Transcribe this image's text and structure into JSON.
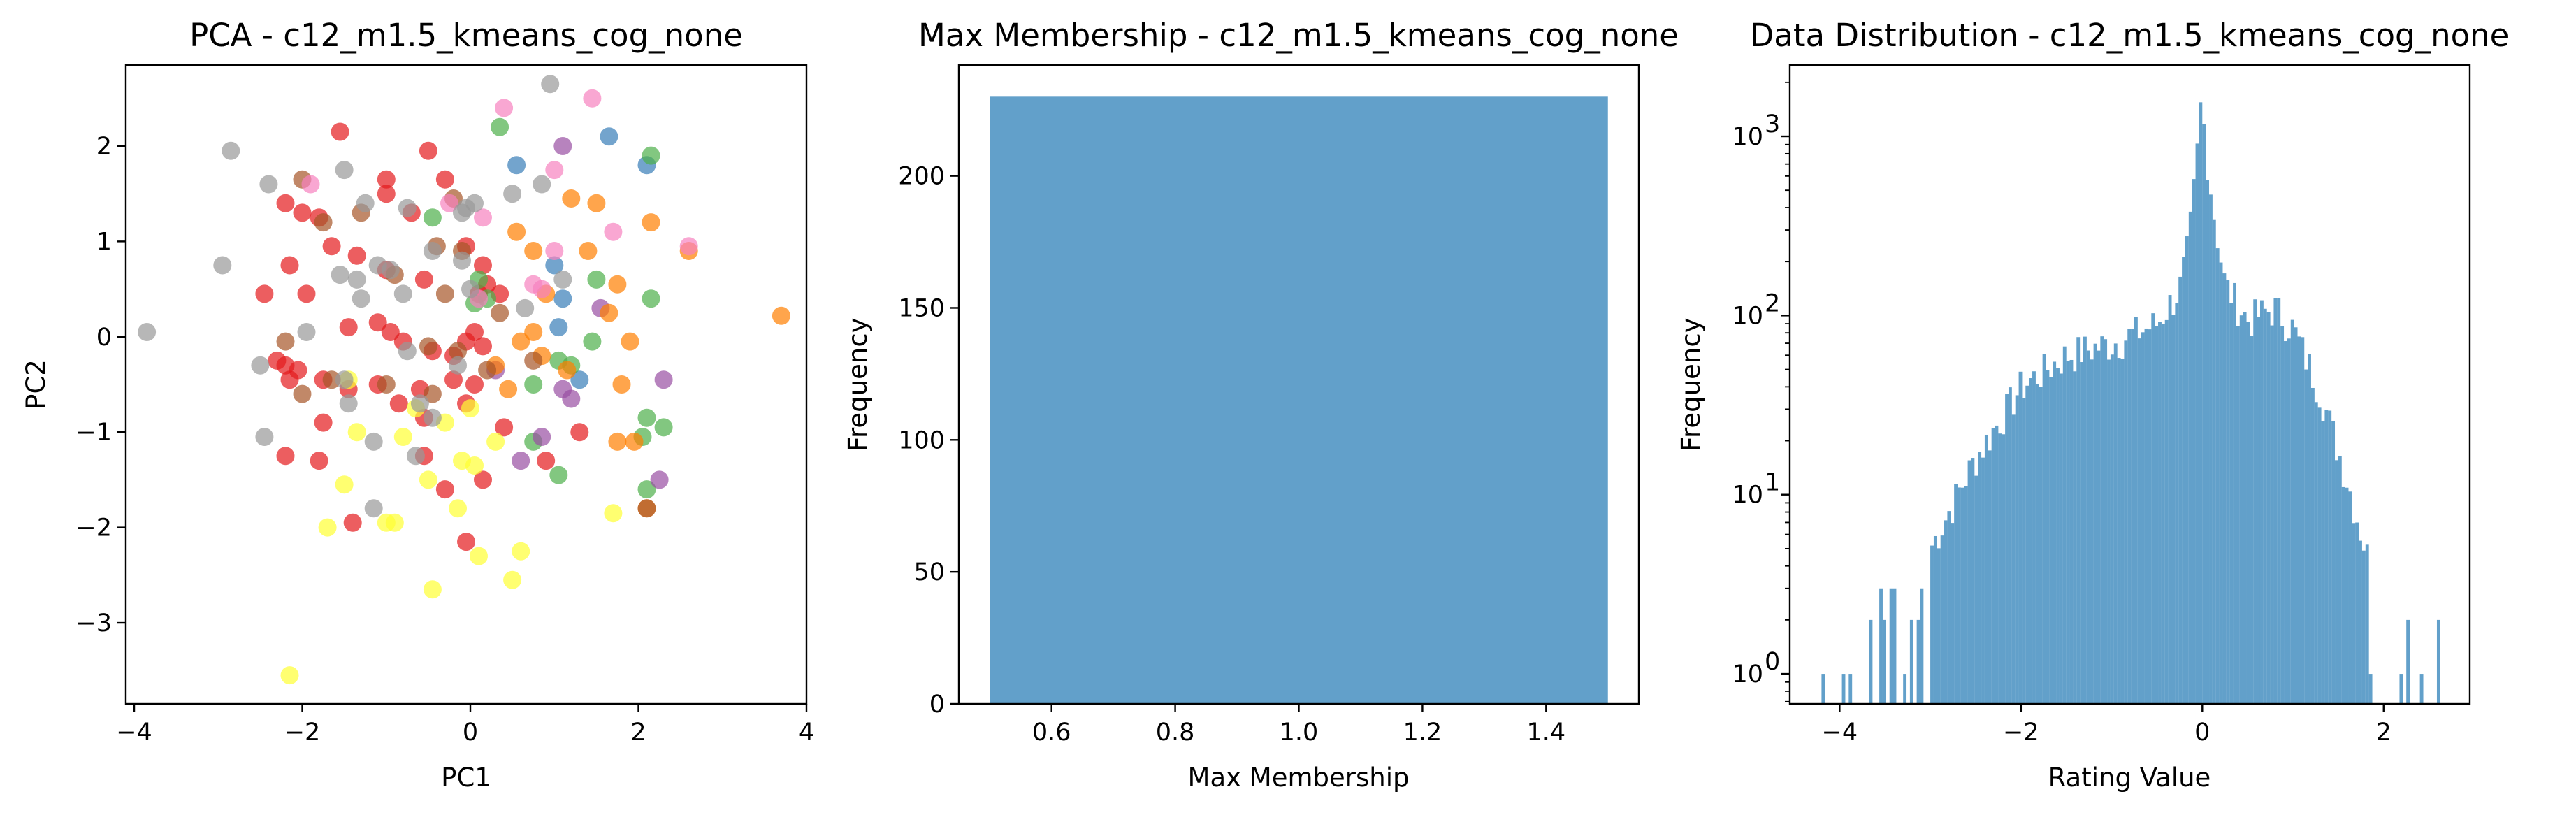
{
  "chart_data": [
    {
      "type": "scatter",
      "title": "PCA - c12_m1.5_kmeans_cog_none",
      "xlabel": "PC1",
      "ylabel": "PC2",
      "xlim": [
        -4.1,
        4.0
      ],
      "ylim": [
        -3.85,
        2.85
      ],
      "xticks": [
        -4,
        -2,
        0,
        2,
        4
      ],
      "yticks": [
        -3,
        -2,
        -1,
        0,
        1,
        2
      ],
      "grid": false,
      "alpha": 0.7,
      "series": [
        {
          "color": "#e41a1c",
          "points": [
            [
              -1.55,
              2.15
            ],
            [
              -0.5,
              1.95
            ],
            [
              -2.2,
              1.4
            ],
            [
              -2.0,
              1.3
            ],
            [
              -1.8,
              1.25
            ],
            [
              -1.0,
              1.65
            ],
            [
              -1.0,
              1.5
            ],
            [
              -0.7,
              1.3
            ],
            [
              -0.3,
              1.65
            ],
            [
              -1.65,
              0.95
            ],
            [
              -1.35,
              0.85
            ],
            [
              -2.15,
              0.75
            ],
            [
              -1.0,
              0.7
            ],
            [
              -0.55,
              0.6
            ],
            [
              -0.05,
              0.95
            ],
            [
              0.15,
              0.75
            ],
            [
              0.1,
              0.45
            ],
            [
              0.2,
              0.55
            ],
            [
              0.35,
              0.45
            ],
            [
              -2.45,
              0.45
            ],
            [
              -1.95,
              0.45
            ],
            [
              -1.1,
              0.15
            ],
            [
              -0.95,
              0.05
            ],
            [
              -1.45,
              0.1
            ],
            [
              -0.8,
              -0.05
            ],
            [
              -0.45,
              -0.15
            ],
            [
              -0.2,
              -0.2
            ],
            [
              0.05,
              0.05
            ],
            [
              0.15,
              -0.1
            ],
            [
              -0.05,
              -0.05
            ],
            [
              -2.3,
              -0.25
            ],
            [
              -2.2,
              -0.3
            ],
            [
              -2.05,
              -0.35
            ],
            [
              -2.15,
              -0.45
            ],
            [
              -1.75,
              -0.45
            ],
            [
              -1.45,
              -0.55
            ],
            [
              -1.1,
              -0.5
            ],
            [
              -0.6,
              -0.55
            ],
            [
              -0.2,
              -0.45
            ],
            [
              0.05,
              -0.5
            ],
            [
              -1.75,
              -0.9
            ],
            [
              -0.85,
              -0.7
            ],
            [
              -0.55,
              -0.85
            ],
            [
              -0.05,
              -0.7
            ],
            [
              0.4,
              -0.95
            ],
            [
              0.9,
              -1.3
            ],
            [
              1.3,
              -1.0
            ],
            [
              -2.2,
              -1.25
            ],
            [
              -1.8,
              -1.3
            ],
            [
              -0.55,
              -1.25
            ],
            [
              0.15,
              -1.5
            ],
            [
              -0.3,
              -1.6
            ],
            [
              -0.05,
              -2.15
            ],
            [
              -1.4,
              -1.95
            ]
          ]
        },
        {
          "color": "#377eb8",
          "points": [
            [
              0.55,
              1.8
            ],
            [
              1.65,
              2.1
            ],
            [
              2.1,
              1.8
            ],
            [
              1.0,
              0.75
            ],
            [
              1.1,
              0.4
            ],
            [
              1.05,
              0.1
            ],
            [
              1.3,
              -0.45
            ]
          ]
        },
        {
          "color": "#4daf4a",
          "points": [
            [
              0.35,
              2.2
            ],
            [
              2.15,
              1.9
            ],
            [
              -0.45,
              1.25
            ],
            [
              0.1,
              0.6
            ],
            [
              0.2,
              0.4
            ],
            [
              0.05,
              0.35
            ],
            [
              1.5,
              0.6
            ],
            [
              2.15,
              0.4
            ],
            [
              1.45,
              -0.05
            ],
            [
              1.05,
              -0.25
            ],
            [
              1.2,
              -0.3
            ],
            [
              0.75,
              -0.5
            ],
            [
              2.1,
              -0.85
            ],
            [
              2.3,
              -0.95
            ],
            [
              0.75,
              -1.1
            ],
            [
              1.05,
              -1.45
            ],
            [
              2.05,
              -1.05
            ],
            [
              2.1,
              -1.6
            ]
          ]
        },
        {
          "color": "#984ea3",
          "points": [
            [
              1.1,
              2.0
            ],
            [
              1.55,
              0.3
            ],
            [
              2.3,
              -0.45
            ],
            [
              1.1,
              -0.55
            ],
            [
              1.2,
              -0.65
            ],
            [
              0.3,
              -0.35
            ],
            [
              0.6,
              -1.3
            ],
            [
              0.85,
              -1.05
            ],
            [
              2.25,
              -1.5
            ]
          ]
        },
        {
          "color": "#ff7f00",
          "points": [
            [
              3.7,
              0.22
            ],
            [
              1.2,
              1.45
            ],
            [
              1.5,
              1.4
            ],
            [
              2.15,
              1.2
            ],
            [
              2.6,
              0.9
            ],
            [
              1.4,
              0.9
            ],
            [
              0.55,
              1.1
            ],
            [
              0.75,
              0.9
            ],
            [
              0.9,
              0.45
            ],
            [
              1.75,
              0.55
            ],
            [
              1.65,
              0.25
            ],
            [
              0.75,
              0.05
            ],
            [
              0.6,
              -0.05
            ],
            [
              1.9,
              -0.05
            ],
            [
              0.85,
              -0.2
            ],
            [
              1.15,
              -0.35
            ],
            [
              0.3,
              -0.3
            ],
            [
              0.45,
              -0.55
            ],
            [
              1.8,
              -0.5
            ],
            [
              1.95,
              -1.1
            ],
            [
              1.75,
              -1.1
            ],
            [
              2.1,
              -1.8
            ]
          ]
        },
        {
          "color": "#ffff33",
          "points": [
            [
              -2.15,
              -3.55
            ],
            [
              -0.45,
              -2.65
            ],
            [
              0.5,
              -2.55
            ],
            [
              0.6,
              -2.25
            ],
            [
              0.1,
              -2.3
            ],
            [
              -0.9,
              -1.95
            ],
            [
              -1.0,
              -1.95
            ],
            [
              -1.7,
              -2.0
            ],
            [
              -0.15,
              -1.8
            ],
            [
              -1.5,
              -1.55
            ],
            [
              1.7,
              -1.85
            ],
            [
              -0.5,
              -1.5
            ],
            [
              -0.1,
              -1.3
            ],
            [
              0.05,
              -1.35
            ],
            [
              -0.8,
              -1.05
            ],
            [
              -1.35,
              -1.0
            ],
            [
              0.3,
              -1.1
            ],
            [
              -0.3,
              -0.9
            ],
            [
              -0.65,
              -0.75
            ],
            [
              0.0,
              -0.75
            ],
            [
              -1.45,
              -0.45
            ]
          ]
        },
        {
          "color": "#a65628",
          "points": [
            [
              -2.0,
              1.65
            ],
            [
              -1.75,
              1.2
            ],
            [
              -1.3,
              1.3
            ],
            [
              -0.2,
              1.45
            ],
            [
              -0.1,
              0.9
            ],
            [
              0.35,
              0.25
            ],
            [
              -0.4,
              0.95
            ],
            [
              -0.9,
              0.65
            ],
            [
              -0.3,
              0.45
            ],
            [
              0.75,
              -0.25
            ],
            [
              -0.5,
              -0.1
            ],
            [
              -0.15,
              -0.15
            ],
            [
              -2.2,
              -0.05
            ],
            [
              -1.65,
              -0.45
            ],
            [
              -2.0,
              -0.6
            ],
            [
              -1.0,
              -0.5
            ],
            [
              -0.45,
              -0.6
            ],
            [
              0.2,
              -0.35
            ],
            [
              2.1,
              -1.8
            ]
          ]
        },
        {
          "color": "#f781bf",
          "points": [
            [
              0.4,
              2.4
            ],
            [
              1.45,
              2.5
            ],
            [
              1.0,
              1.75
            ],
            [
              -1.9,
              1.6
            ],
            [
              0.15,
              1.25
            ],
            [
              -0.25,
              1.4
            ],
            [
              1.7,
              1.1
            ],
            [
              2.6,
              0.95
            ],
            [
              1.0,
              0.9
            ],
            [
              0.75,
              0.55
            ],
            [
              0.85,
              0.5
            ],
            [
              0.1,
              0.4
            ]
          ]
        },
        {
          "color": "#999999",
          "points": [
            [
              -3.85,
              0.05
            ],
            [
              -2.95,
              0.75
            ],
            [
              -2.85,
              1.95
            ],
            [
              -2.4,
              1.6
            ],
            [
              -1.5,
              1.75
            ],
            [
              -1.25,
              1.4
            ],
            [
              -0.75,
              1.35
            ],
            [
              -0.05,
              1.35
            ],
            [
              -0.1,
              1.3
            ],
            [
              0.05,
              1.4
            ],
            [
              0.95,
              2.65
            ],
            [
              -1.55,
              0.65
            ],
            [
              -1.35,
              0.6
            ],
            [
              -1.1,
              0.75
            ],
            [
              -0.95,
              0.7
            ],
            [
              -0.45,
              0.9
            ],
            [
              -0.8,
              0.45
            ],
            [
              -1.3,
              0.4
            ],
            [
              -2.5,
              -0.3
            ],
            [
              -2.45,
              -1.05
            ],
            [
              -1.5,
              -0.45
            ],
            [
              -1.45,
              -0.7
            ],
            [
              -0.6,
              -0.7
            ],
            [
              -1.15,
              -1.1
            ],
            [
              -0.65,
              -1.25
            ],
            [
              -0.75,
              -0.15
            ],
            [
              -0.15,
              -0.3
            ],
            [
              -1.95,
              0.05
            ],
            [
              0.85,
              1.6
            ],
            [
              0.5,
              1.5
            ],
            [
              1.1,
              0.6
            ],
            [
              0.65,
              0.3
            ],
            [
              -1.15,
              -1.8
            ],
            [
              -0.45,
              -0.85
            ],
            [
              0.0,
              0.5
            ],
            [
              -0.1,
              0.8
            ]
          ]
        }
      ]
    },
    {
      "type": "bar",
      "title": "Max Membership - c12_m1.5_kmeans_cog_none",
      "xlabel": "Max Membership",
      "ylabel": "Frequency",
      "xlim": [
        0.45,
        1.55
      ],
      "ylim": [
        0,
        242
      ],
      "xticks": [
        0.6,
        0.8,
        1.0,
        1.2,
        1.4
      ],
      "xtick_labels": [
        "0.6",
        "0.8",
        "1.0",
        "1.2",
        "1.4"
      ],
      "yticks": [
        0,
        50,
        100,
        150,
        200
      ],
      "grid": false,
      "color": "#1f77b4",
      "alpha": 0.7,
      "bins": [
        {
          "x0": 0.5,
          "x1": 1.5,
          "value": 230
        }
      ]
    },
    {
      "type": "bar",
      "title": "Data Distribution - c12_m1.5_kmeans_cog_none",
      "xlabel": "Rating Value",
      "ylabel": "Frequency",
      "yscale": "log",
      "xlim": [
        -4.55,
        2.95
      ],
      "ylim": [
        0.68,
        2500
      ],
      "xticks": [
        -4,
        -2,
        0,
        2
      ],
      "yticks": [
        1,
        10,
        100,
        1000
      ],
      "ytick_labels": [
        [
          "10",
          "0"
        ],
        [
          "10",
          "1"
        ],
        [
          "10",
          "2"
        ],
        [
          "10",
          "3"
        ]
      ],
      "grid": false,
      "color": "#1f77b4",
      "alpha": 0.7,
      "bin_start": -4.2,
      "bin_width": 0.0375,
      "bin_count": 182,
      "peaks": [
        [
          -4.2,
          0.8
        ],
        [
          -3.8,
          0.9
        ],
        [
          -3.5,
          2.5
        ],
        [
          -3.1,
          3
        ],
        [
          -3.0,
          5
        ],
        [
          -2.5,
          16
        ],
        [
          -2.0,
          40
        ],
        [
          -1.5,
          60
        ],
        [
          -1.0,
          70
        ],
        [
          -0.5,
          90
        ],
        [
          -0.25,
          140
        ],
        [
          -0.15,
          250
        ],
        [
          -0.07,
          650
        ],
        [
          -0.02,
          1450
        ],
        [
          0.0,
          1400
        ],
        [
          0.05,
          800
        ],
        [
          0.12,
          400
        ],
        [
          0.25,
          150
        ],
        [
          0.5,
          95
        ],
        [
          0.8,
          110
        ],
        [
          1.0,
          85
        ],
        [
          1.3,
          38
        ],
        [
          1.6,
          12
        ],
        [
          1.8,
          5
        ],
        [
          2.0,
          2
        ],
        [
          2.2,
          1
        ],
        [
          2.6,
          1
        ],
        [
          2.65,
          0
        ]
      ],
      "sparse_bins": [
        [
          -4.2,
          1
        ],
        [
          -3.95,
          1
        ],
        [
          -3.9,
          1
        ],
        [
          -3.65,
          2
        ],
        [
          -3.55,
          3
        ],
        [
          -3.5,
          2
        ],
        [
          -3.45,
          3
        ],
        [
          -3.4,
          3
        ],
        [
          -3.3,
          1
        ],
        [
          -3.2,
          2
        ],
        [
          -3.15,
          2
        ],
        [
          -3.1,
          3
        ],
        [
          1.85,
          1
        ],
        [
          2.2,
          1
        ],
        [
          2.28,
          2
        ],
        [
          2.4,
          1
        ],
        [
          2.6,
          2
        ]
      ]
    }
  ]
}
